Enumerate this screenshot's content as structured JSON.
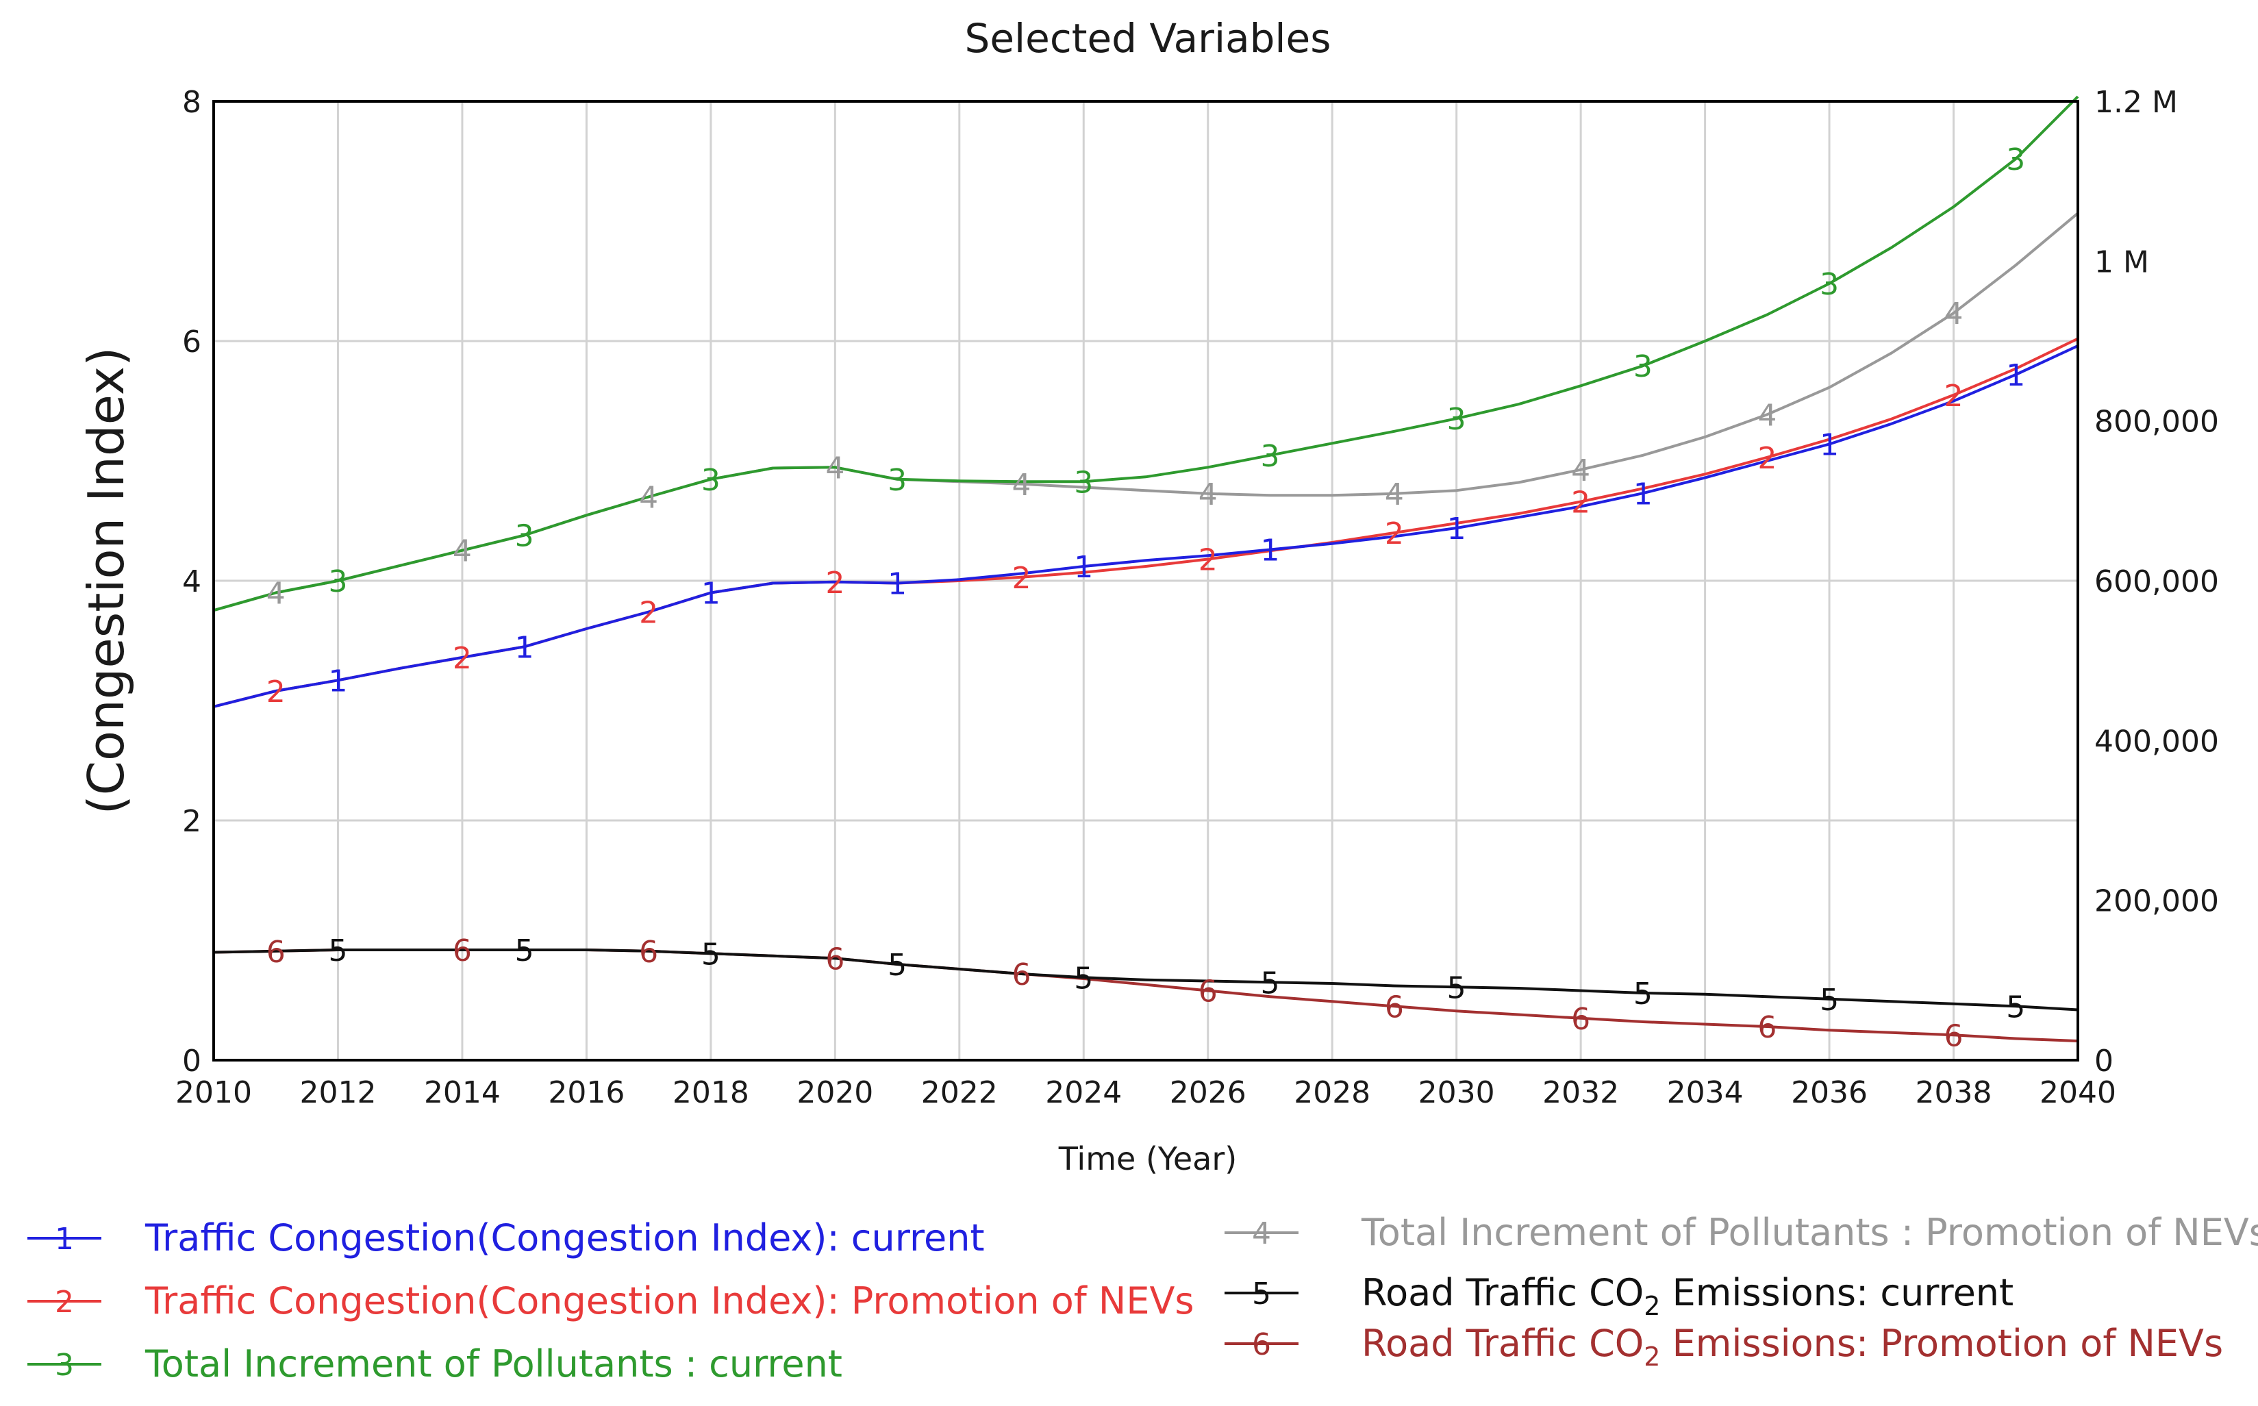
{
  "chart_data": {
    "type": "line",
    "title": "Selected Variables",
    "xlabel": "Time (Year)",
    "ylabel": "(Congestion Index)",
    "xlim": [
      2010,
      2040
    ],
    "ylim": [
      0,
      8
    ],
    "y2lim": [
      0,
      1200000
    ],
    "grid": true,
    "x_ticks": [
      "2010",
      "2012",
      "2014",
      "2016",
      "2018",
      "2020",
      "2022",
      "2024",
      "2026",
      "2028",
      "2030",
      "2032",
      "2034",
      "2036",
      "2038",
      "2040"
    ],
    "y_ticks": [
      "0",
      "2",
      "4",
      "6",
      "8"
    ],
    "y2_ticks": [
      "0",
      "200,000",
      "400,000",
      "600,000",
      "800,000",
      "1 M",
      "1.2 M"
    ],
    "x": [
      2010,
      2011,
      2012,
      2013,
      2014,
      2015,
      2016,
      2017,
      2018,
      2019,
      2020,
      2021,
      2022,
      2023,
      2024,
      2025,
      2026,
      2027,
      2028,
      2029,
      2030,
      2031,
      2032,
      2033,
      2034,
      2035,
      2036,
      2037,
      2038,
      2039,
      2040
    ],
    "series": [
      {
        "id": "1",
        "name": "Traffic Congestion(Congestion Index): current",
        "axis": "left",
        "color": "#2020e0",
        "legend_marker": "1",
        "values": [
          2.95,
          3.08,
          3.17,
          3.27,
          3.36,
          3.45,
          3.6,
          3.74,
          3.9,
          3.98,
          3.99,
          3.98,
          4.01,
          4.06,
          4.12,
          4.17,
          4.21,
          4.26,
          4.31,
          4.37,
          4.44,
          4.53,
          4.62,
          4.73,
          4.86,
          5.0,
          5.14,
          5.31,
          5.5,
          5.72,
          5.96
        ]
      },
      {
        "id": "2",
        "name": "Traffic Congestion(Congestion Index): Promotion of NEVs",
        "axis": "left",
        "color": "#e83a3a",
        "legend_marker": "2",
        "values": [
          2.95,
          3.08,
          3.17,
          3.27,
          3.36,
          3.45,
          3.6,
          3.74,
          3.9,
          3.98,
          3.99,
          3.98,
          4.0,
          4.03,
          4.07,
          4.12,
          4.18,
          4.25,
          4.32,
          4.4,
          4.48,
          4.56,
          4.66,
          4.77,
          4.89,
          5.03,
          5.18,
          5.35,
          5.55,
          5.77,
          6.02
        ]
      },
      {
        "id": "3",
        "name": "Total Increment of Pollutants : current",
        "axis": "right",
        "color": "#2e9a2e",
        "legend_marker": "3",
        "values": [
          563000,
          585000,
          600000,
          619000,
          638000,
          657000,
          682000,
          705000,
          727000,
          741000,
          742000,
          727000,
          725000,
          724000,
          724000,
          730000,
          742000,
          757000,
          772000,
          787000,
          803000,
          821000,
          844000,
          869000,
          900000,
          933000,
          972000,
          1017000,
          1068000,
          1128000,
          1206000
        ]
      },
      {
        "id": "4",
        "name": "Total Increment of Pollutants : Promotion of NEVs",
        "axis": "right",
        "color": "#999999",
        "legend_marker": "4",
        "values": [
          563000,
          585000,
          600000,
          619000,
          638000,
          657000,
          682000,
          705000,
          727000,
          741000,
          742000,
          727000,
          724000,
          721000,
          717000,
          713000,
          709000,
          707000,
          707000,
          709000,
          713000,
          723000,
          739000,
          757000,
          780000,
          808000,
          842000,
          885000,
          935000,
          995000,
          1060000
        ]
      },
      {
        "id": "5",
        "name": "Road Traffic CO2 Emissions: current",
        "axis": "left",
        "color": "#111111",
        "legend_marker": "5",
        "values": [
          0.9,
          0.91,
          0.92,
          0.92,
          0.92,
          0.92,
          0.92,
          0.91,
          0.89,
          0.87,
          0.85,
          0.8,
          0.76,
          0.72,
          0.69,
          0.67,
          0.66,
          0.65,
          0.64,
          0.62,
          0.61,
          0.6,
          0.58,
          0.56,
          0.55,
          0.53,
          0.51,
          0.49,
          0.47,
          0.45,
          0.42
        ]
      },
      {
        "id": "6",
        "name": "Road Traffic CO2 Emissions: Promotion of NEVs",
        "axis": "left",
        "color": "#a33030",
        "legend_marker": "6",
        "values": [
          0.9,
          0.91,
          0.92,
          0.92,
          0.92,
          0.92,
          0.92,
          0.91,
          0.89,
          0.87,
          0.85,
          0.8,
          0.76,
          0.72,
          0.68,
          0.63,
          0.58,
          0.53,
          0.49,
          0.45,
          0.41,
          0.38,
          0.35,
          0.32,
          0.3,
          0.28,
          0.25,
          0.23,
          0.21,
          0.18,
          0.16
        ]
      }
    ],
    "markers": [
      {
        "series": "1",
        "x": [
          2012,
          2015,
          2018,
          2021,
          2024,
          2027,
          2030,
          2033,
          2036,
          2039
        ]
      },
      {
        "series": "2",
        "x": [
          2011,
          2014,
          2017,
          2020,
          2023,
          2026,
          2029,
          2032,
          2035,
          2038
        ]
      },
      {
        "series": "3",
        "x": [
          2012,
          2015,
          2018,
          2021,
          2024,
          2027,
          2030,
          2033,
          2036,
          2039
        ]
      },
      {
        "series": "4",
        "x": [
          2011,
          2014,
          2017,
          2020,
          2023,
          2026,
          2029,
          2032,
          2035,
          2038
        ]
      },
      {
        "series": "5",
        "x": [
          2012,
          2015,
          2018,
          2021,
          2024,
          2027,
          2030,
          2033,
          2036,
          2039
        ]
      },
      {
        "series": "6",
        "x": [
          2011,
          2014,
          2017,
          2020,
          2023,
          2026,
          2029,
          2032,
          2035,
          2038
        ]
      }
    ]
  },
  "legend": [
    {
      "id": "1",
      "marker": "1",
      "color": "#2020e0",
      "text": "Traffic Congestion(Congestion Index): current"
    },
    {
      "id": "2",
      "marker": "2",
      "color": "#e83a3a",
      "text": "Traffic Congestion(Congestion Index): Promotion of NEVs"
    },
    {
      "id": "3",
      "marker": "3",
      "color": "#2e9a2e",
      "text": "Total Increment of Pollutants : current"
    },
    {
      "id": "4",
      "marker": "4",
      "color": "#999999",
      "text": "Total Increment of Pollutants : Promotion of NEVs"
    },
    {
      "id": "5",
      "marker": "5",
      "color": "#111111",
      "text_pre": "Road Traffic CO",
      "text_sub": "2",
      "text_post": " Emissions: current"
    },
    {
      "id": "6",
      "marker": "6",
      "color": "#a33030",
      "text_pre": "Road Traffic CO",
      "text_sub": "2",
      "text_post": " Emissions: Promotion of NEVs"
    }
  ]
}
